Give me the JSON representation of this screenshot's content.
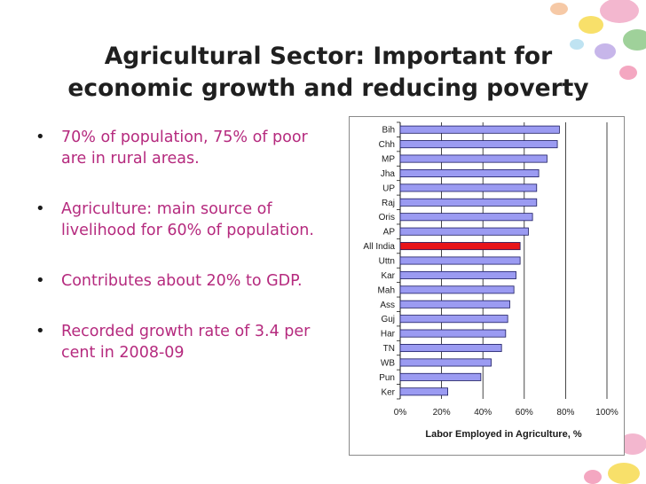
{
  "slide": {
    "title_line1": "Agricultural Sector: Important for",
    "title_line2": "economic growth and reducing poverty",
    "bullets": [
      "70% of population, 75% of poor are in rural areas.",
      "Agriculture: main source of livelihood for 60% of population.",
      "Contributes about 20% to GDP.",
      "Recorded growth rate of 3.4 per cent in 2008-09"
    ]
  },
  "chart_data": {
    "type": "bar",
    "orientation": "horizontal",
    "categories": [
      "Bih",
      "Chh",
      "MP",
      "Jha",
      "UP",
      "Raj",
      "Oris",
      "AP",
      "All India",
      "Uttn",
      "Kar",
      "Mah",
      "Ass",
      "Guj",
      "Har",
      "TN",
      "WB",
      "Pun",
      "Ker"
    ],
    "values": [
      77,
      76,
      71,
      67,
      66,
      66,
      64,
      62,
      58,
      58,
      56,
      55,
      53,
      52,
      51,
      49,
      44,
      39,
      23
    ],
    "highlight": "All India",
    "xlabel": "Labor Employed in Agriculture, %",
    "ylabel": "",
    "xlim": [
      0,
      100
    ],
    "xticks": [
      "0%",
      "20%",
      "40%",
      "60%",
      "80%",
      "100%"
    ],
    "grid": "vertical",
    "colors": {
      "bar": "#9b9bf2",
      "highlight": "#e8141a",
      "bar_border": "#1a1a60"
    }
  }
}
